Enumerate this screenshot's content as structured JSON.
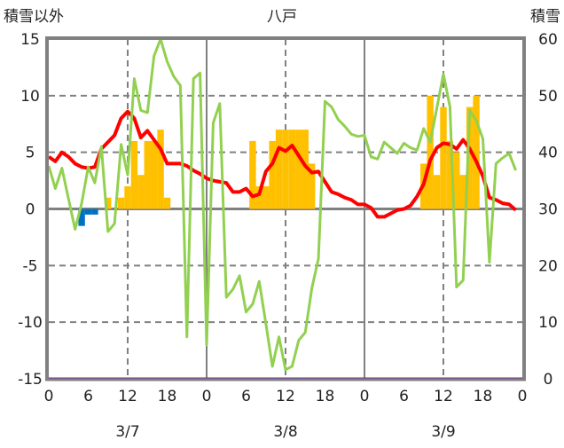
{
  "chart_data": {
    "type": "bar+line",
    "title": "八戸",
    "ylabel_left": "積雪以外",
    "ylabel_right": "積雪",
    "ylim_left": [
      -15,
      15
    ],
    "ylim_right": [
      0,
      60
    ],
    "yticks_left": [
      "15",
      "10",
      "5",
      "0",
      "-5",
      "-10",
      "-15"
    ],
    "yticks_right": [
      "60",
      "50",
      "40",
      "30",
      "20",
      "10",
      "0"
    ],
    "xlim_hours": [
      0,
      72
    ],
    "xticks": [
      "0",
      "6",
      "12",
      "18",
      "0",
      "6",
      "12",
      "18",
      "0",
      "6",
      "12",
      "18",
      "0"
    ],
    "day_labels": [
      "3/7",
      "3/8",
      "3/9"
    ],
    "grid": true,
    "colors": {
      "temperature": "#ff0000",
      "green": "#92d050",
      "snowfall": "#ffc000",
      "negative": "#0070c0",
      "snow_depth": "#7030a0",
      "frame": "#808080"
    },
    "series": [
      {
        "name": "snowfall",
        "kind": "bar",
        "color": "#ffc000",
        "points": [
          [
            9,
            1
          ],
          [
            11,
            1
          ],
          [
            12,
            2
          ],
          [
            13,
            6
          ],
          [
            14,
            3
          ],
          [
            15,
            6
          ],
          [
            16,
            6
          ],
          [
            17,
            7
          ],
          [
            18,
            1
          ],
          [
            31,
            6
          ],
          [
            32,
            2
          ],
          [
            33,
            2
          ],
          [
            34,
            6
          ],
          [
            35,
            7
          ],
          [
            36,
            7
          ],
          [
            37,
            7
          ],
          [
            38,
            7
          ],
          [
            39,
            7
          ],
          [
            40,
            4
          ],
          [
            57,
            4
          ],
          [
            58,
            10
          ],
          [
            59,
            3
          ],
          [
            60,
            9
          ],
          [
            61,
            6
          ],
          [
            62,
            5
          ],
          [
            63,
            3
          ],
          [
            64,
            9
          ],
          [
            65,
            10
          ]
        ]
      },
      {
        "name": "negative",
        "kind": "bar",
        "color": "#0070c0",
        "points": [
          [
            5,
            -1.5
          ],
          [
            6,
            -0.5
          ],
          [
            7,
            -0.5
          ]
        ]
      },
      {
        "name": "temperature",
        "kind": "line",
        "color": "#ff0000",
        "values": [
          4.6,
          4.2,
          5.0,
          4.6,
          4.0,
          3.7,
          3.6,
          3.7,
          5.3,
          5.9,
          6.5,
          8.0,
          8.6,
          8.0,
          6.3,
          6.9,
          6.1,
          5.3,
          4.0,
          4.0,
          4.0,
          3.8,
          3.4,
          3.1,
          2.7,
          2.5,
          2.4,
          2.3,
          1.5,
          1.5,
          1.8,
          1.1,
          1.3,
          3.3,
          4.0,
          5.4,
          5.1,
          5.6,
          4.7,
          3.8,
          3.2,
          3.3,
          2.4,
          1.5,
          1.3,
          1.0,
          0.8,
          0.4,
          0.4,
          0.1,
          -0.7,
          -0.7,
          -0.4,
          -0.1,
          0.0,
          0.3,
          1.1,
          2.2,
          4.3,
          5.4,
          5.8,
          5.7,
          5.3,
          6.1,
          5.3,
          4.2,
          2.9,
          1.0,
          0.8,
          0.5,
          0.4,
          -0.1
        ]
      },
      {
        "name": "green",
        "kind": "line",
        "color": "#92d050",
        "values": [
          3.8,
          1.8,
          3.6,
          0.9,
          -1.8,
          0.5,
          3.7,
          2.3,
          5.5,
          -2.0,
          -1.3,
          5.7,
          3.0,
          11.5,
          8.7,
          8.5,
          13.5,
          15.0,
          13.0,
          11.7,
          10.9,
          -11.3,
          11.5,
          12.0,
          -12.0,
          7.6,
          9.3,
          -7.8,
          -7.1,
          -5.9,
          -9.1,
          -8.4,
          -6.4,
          -10.1,
          -13.9,
          -11.3,
          -14.2,
          -13.9,
          -11.6,
          -10.9,
          -7.0,
          -4.4,
          9.5,
          9.0,
          7.9,
          7.3,
          6.6,
          6.4,
          6.5,
          4.6,
          4.4,
          5.9,
          5.4,
          4.9,
          5.8,
          5.4,
          5.2,
          7.1,
          5.9,
          8.9,
          11.9,
          9.0,
          -6.9,
          -6.3,
          8.7,
          7.8,
          6.2,
          -4.7,
          4.0,
          4.5,
          4.9,
          3.4
        ]
      },
      {
        "name": "snow_depth",
        "kind": "line",
        "axis": "right",
        "color": "#7030a0",
        "constant": 0
      }
    ]
  }
}
